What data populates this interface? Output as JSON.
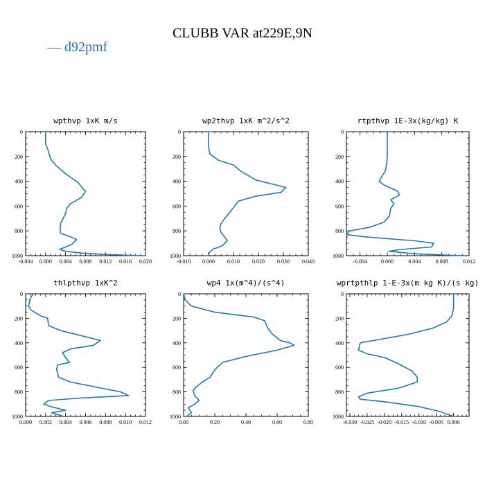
{
  "figure": {
    "title": "CLUBB VAR at229E,9N",
    "legend": [
      {
        "name": "— d92pmf",
        "color": "#1f77b4"
      }
    ]
  },
  "chart_data": [
    {
      "type": "line",
      "title": "wpthvp  1xK m/s",
      "color": "#1f77b4",
      "xlim": [
        -0.004,
        0.02
      ],
      "ylim": [
        0,
        1000
      ],
      "y_inverted": true,
      "xticks": [
        "-0.004",
        "0.000",
        "0.004",
        "0.008",
        "0.012",
        "0.016",
        "0.020"
      ],
      "yticks": [
        "0",
        "200",
        "400",
        "600",
        "800",
        "1000"
      ],
      "x": [
        0.0,
        0.0,
        0.0,
        0.0005,
        0.001,
        0.002,
        0.004,
        0.0065,
        0.0075,
        0.008,
        0.0072,
        0.005,
        0.0042,
        0.004,
        0.0035,
        0.003,
        0.0029,
        0.003,
        0.0045,
        0.0062,
        0.0052,
        0.0028,
        0.004,
        0.0075,
        0.012,
        0.016,
        0.0195
      ],
      "y": [
        0,
        50,
        100,
        150,
        220,
        270,
        340,
        410,
        460,
        480,
        530,
        580,
        620,
        660,
        700,
        740,
        790,
        820,
        840,
        870,
        910,
        950,
        965,
        980,
        990,
        996,
        1000
      ]
    },
    {
      "type": "line",
      "title": "wp2thvp  1xK m^2/s^2",
      "color": "#1f77b4",
      "xlim": [
        -0.01,
        0.04
      ],
      "ylim": [
        0,
        1000
      ],
      "y_inverted": true,
      "xticks": [
        "-0.010",
        "0.000",
        "0.010",
        "0.020",
        "0.030",
        "0.040"
      ],
      "yticks": [
        "0",
        "200",
        "400",
        "600",
        "800",
        "1000"
      ],
      "x": [
        0.0,
        0.0,
        0.0,
        0.0005,
        0.004,
        0.01,
        0.013,
        0.019,
        0.027,
        0.031,
        0.029,
        0.019,
        0.012,
        0.0105,
        0.0085,
        0.0065,
        0.005,
        0.0045,
        0.0052,
        0.0065,
        0.0075,
        0.0055,
        0.0015,
        0.0003,
        0.0
      ],
      "y": [
        0,
        60,
        120,
        180,
        230,
        270,
        320,
        390,
        430,
        450,
        490,
        520,
        560,
        600,
        650,
        700,
        740,
        780,
        820,
        850,
        880,
        920,
        950,
        975,
        1000
      ]
    },
    {
      "type": "line",
      "title": "rtpthvp  1E-3x(kg/kg) K",
      "color": "#1f77b4",
      "xlim": [
        -0.006,
        0.012
      ],
      "ylim": [
        0,
        1000
      ],
      "y_inverted": true,
      "xticks": [
        "-0.004",
        "0.000",
        "0.004",
        "0.008",
        "0.012"
      ],
      "yticks": [
        "0",
        "200",
        "400",
        "600",
        "800",
        "1000"
      ],
      "x": [
        0.0,
        0.0,
        0.0,
        -0.0001,
        -0.0003,
        -0.0008,
        -0.0012,
        -0.0005,
        0.0015,
        0.0018,
        0.0005,
        0.001,
        0.0005,
        0.0003,
        -0.0005,
        -0.0025,
        -0.0055,
        -0.006,
        -0.003,
        0.004,
        0.0068,
        0.0065,
        0.002,
        0.0002,
        0.004,
        0.011
      ],
      "y": [
        0,
        100,
        200,
        260,
        320,
        360,
        400,
        430,
        480,
        510,
        550,
        580,
        620,
        680,
        730,
        770,
        800,
        830,
        850,
        880,
        900,
        930,
        950,
        965,
        985,
        1000
      ]
    },
    {
      "type": "line",
      "title": "thlpthvp  1xK^2",
      "color": "#1f77b4",
      "xlim": [
        0.0,
        0.012
      ],
      "ylim": [
        0,
        1000
      ],
      "y_inverted": true,
      "xticks": [
        "0.000",
        "0.002",
        "0.004",
        "0.006",
        "0.008",
        "0.010",
        "0.012"
      ],
      "yticks": [
        "0",
        "200",
        "400",
        "600",
        "800",
        "1000"
      ],
      "x": [
        0.0008,
        0.0006,
        0.0004,
        0.0003,
        0.0005,
        0.0015,
        0.0022,
        0.0023,
        0.0035,
        0.0055,
        0.0075,
        0.0068,
        0.0045,
        0.0037,
        0.004,
        0.0044,
        0.0032,
        0.0031,
        0.0033,
        0.0045,
        0.007,
        0.0095,
        0.0103,
        0.0055,
        0.0023,
        0.0018,
        0.0025,
        0.004,
        0.0026,
        0.0038
      ],
      "y": [
        0,
        20,
        50,
        100,
        130,
        180,
        200,
        260,
        300,
        340,
        380,
        420,
        450,
        480,
        520,
        560,
        580,
        620,
        680,
        720,
        760,
        800,
        830,
        850,
        870,
        900,
        920,
        950,
        970,
        1000
      ]
    },
    {
      "type": "line",
      "title": "wp4  1x(m^4)/(s^4)",
      "color": "#1f77b4",
      "xlim": [
        0.0,
        0.8
      ],
      "ylim": [
        0,
        1000
      ],
      "y_inverted": true,
      "xticks": [
        "0.00",
        "0.20",
        "0.40",
        "0.60",
        "0.80"
      ],
      "yticks": [
        "0",
        "200",
        "400",
        "600",
        "800",
        "1000"
      ],
      "x": [
        0.0,
        0.01,
        0.05,
        0.2,
        0.45,
        0.52,
        0.54,
        0.57,
        0.62,
        0.68,
        0.71,
        0.6,
        0.4,
        0.25,
        0.2,
        0.17,
        0.12,
        0.08,
        0.06,
        0.07,
        0.1,
        0.07,
        0.03,
        0.05,
        0.02
      ],
      "y": [
        0,
        50,
        100,
        150,
        190,
        220,
        280,
        330,
        380,
        400,
        420,
        460,
        510,
        560,
        620,
        680,
        720,
        760,
        790,
        830,
        870,
        900,
        930,
        970,
        1000
      ]
    },
    {
      "type": "line",
      "title": "wprtpthlp  1-E-3x(m kg K)/(s kg)",
      "color": "#1f77b4",
      "xlim": [
        -0.031,
        0.0045
      ],
      "ylim": [
        0,
        1000
      ],
      "y_inverted": true,
      "xticks": [
        "-0.030",
        "-0.025",
        "-0.020",
        "-0.015",
        "-0.010",
        "-0.005",
        "0.000"
      ],
      "yticks": [
        "0",
        "200",
        "400",
        "600",
        "800",
        "1000"
      ],
      "x": [
        0.0,
        0.0,
        0.0,
        -0.0005,
        -0.002,
        -0.006,
        -0.013,
        -0.021,
        -0.027,
        -0.0275,
        -0.025,
        -0.02,
        -0.016,
        -0.012,
        -0.0105,
        -0.0105,
        -0.016,
        -0.025,
        -0.0275,
        -0.027,
        -0.02,
        -0.01,
        -0.004,
        0.0
      ],
      "y": [
        0,
        60,
        120,
        180,
        230,
        280,
        330,
        370,
        400,
        460,
        490,
        520,
        570,
        630,
        680,
        720,
        770,
        810,
        840,
        860,
        880,
        920,
        960,
        1000
      ]
    }
  ]
}
